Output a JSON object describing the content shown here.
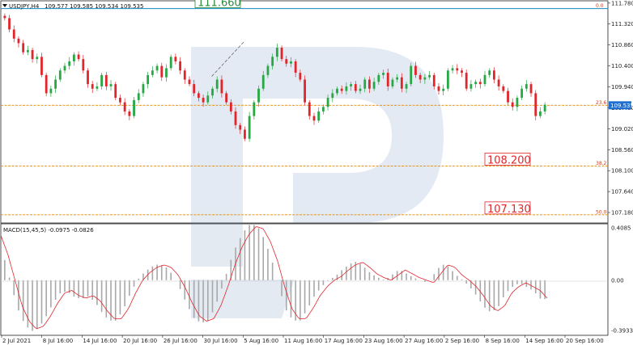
{
  "header": {
    "symbol_label": "USDJPY,H4",
    "quote": "109.577 109.585 109.534 109.535"
  },
  "macd": {
    "label": "MACD(15,45,5) -0.0975 -0.0826",
    "axis_ticks": [
      "0.4085",
      "0.00",
      "-0.3933"
    ]
  },
  "colors": {
    "bull": "#27a844",
    "bear": "#e0262b",
    "fib_line": "#e58a00",
    "top_line": "#2a97c9",
    "macd_hist": "#a8a8a8",
    "macd_signal": "#e0262b",
    "price_tag": "#1e6fd1",
    "label_green": "#2d8a3a",
    "label_red": "#e0262b"
  },
  "chart_data": {
    "type": "candlestick",
    "price_axis": {
      "range": [
        106.95,
        111.83
      ],
      "ticks": [
        "111.780",
        "111.320",
        "110.860",
        "110.400",
        "109.940",
        "109.480",
        "109.020",
        "108.560",
        "108.100",
        "107.640",
        "107.180"
      ]
    },
    "x_labels": [
      "2 Jul 2021",
      "8 Jul 16:00",
      "14 Jul 16:00",
      "20 Jul 16:00",
      "26 Jul 16:00",
      "30 Jul 16:00",
      "5 Aug 16:00",
      "11 Aug 16:00",
      "17 Aug 16:00",
      "23 Aug 16:00",
      "27 Aug 16:00",
      "2 Sep 16:00",
      "8 Sep 16:00",
      "14 Sep 16:00",
      "20 Sep 16:00"
    ],
    "close_path": [
      111.45,
      111.2,
      111.0,
      110.9,
      110.7,
      110.75,
      110.55,
      110.6,
      110.2,
      109.8,
      109.9,
      110.1,
      110.3,
      110.4,
      110.5,
      110.65,
      110.55,
      110.3,
      110.0,
      109.9,
      109.95,
      110.2,
      109.95,
      110.0,
      109.7,
      109.6,
      109.4,
      109.3,
      109.65,
      109.8,
      110.0,
      110.2,
      110.3,
      110.4,
      110.15,
      110.35,
      110.6,
      110.5,
      110.3,
      110.1,
      110.0,
      109.8,
      109.7,
      109.6,
      109.75,
      109.9,
      110.1,
      109.8,
      109.6,
      109.4,
      109.1,
      109.0,
      108.8,
      109.3,
      109.6,
      109.9,
      110.2,
      110.4,
      110.6,
      110.8,
      110.55,
      110.45,
      110.5,
      110.25,
      110.1,
      109.6,
      109.3,
      109.2,
      109.4,
      109.5,
      109.7,
      109.8,
      109.9,
      109.85,
      109.95,
      110.0,
      109.85,
      109.9,
      110.1,
      109.9,
      110.05,
      110.2,
      110.25,
      109.95,
      110.1,
      110.15,
      109.9,
      110.0,
      110.4,
      110.2,
      110.1,
      110.15,
      110.2,
      109.95,
      109.85,
      109.9,
      110.3,
      110.35,
      110.3,
      110.25,
      109.9,
      110.0,
      110.05,
      110.0,
      110.2,
      110.3,
      110.1,
      109.95,
      109.85,
      109.6,
      109.5,
      109.7,
      109.9,
      110.0,
      109.8,
      109.3,
      109.4,
      109.55
    ],
    "last_price": "109.535",
    "trend_annotation": {
      "from": {
        "x": 0.386,
        "price": 110.17
      },
      "to": {
        "x": 0.445,
        "price": 110.93
      }
    },
    "levels": [
      {
        "name": "fib-0",
        "price": 111.66,
        "fib_label": "0.0",
        "big_label": "111.660",
        "big_color": "green",
        "line": "top_line"
      },
      {
        "name": "fib-23",
        "price": 109.535,
        "fib_label": "23.6",
        "big_label": "",
        "big_color": "",
        "line": "fib_line"
      },
      {
        "name": "fib-38",
        "price": 108.2,
        "fib_label": "38.2",
        "big_label": "108.200",
        "big_color": "red",
        "line": "fib_line"
      },
      {
        "name": "fib-50",
        "price": 107.13,
        "fib_label": "50.0",
        "big_label": "107.130",
        "big_color": "red",
        "line": "fib_line"
      }
    ],
    "macd_range": [
      -0.43,
      0.44
    ],
    "macd_signal_path": [
      0.35,
      0.2,
      0.0,
      -0.2,
      -0.32,
      -0.38,
      -0.36,
      -0.28,
      -0.18,
      -0.1,
      -0.08,
      -0.12,
      -0.14,
      -0.12,
      -0.16,
      -0.24,
      -0.3,
      -0.3,
      -0.22,
      -0.1,
      0.0,
      0.06,
      0.1,
      0.12,
      0.1,
      0.04,
      -0.06,
      -0.18,
      -0.28,
      -0.32,
      -0.3,
      -0.2,
      -0.05,
      0.12,
      0.26,
      0.36,
      0.42,
      0.4,
      0.3,
      0.15,
      -0.05,
      -0.22,
      -0.3,
      -0.3,
      -0.22,
      -0.12,
      -0.05,
      0.0,
      0.03,
      0.08,
      0.12,
      0.14,
      0.1,
      0.05,
      0.02,
      0.0,
      0.04,
      0.08,
      0.05,
      0.02,
      0.0,
      -0.02,
      0.05,
      0.12,
      0.1,
      0.04,
      0.0,
      -0.05,
      -0.12,
      -0.2,
      -0.24,
      -0.2,
      -0.1,
      -0.05,
      -0.02,
      -0.05,
      -0.08,
      -0.14
    ]
  }
}
